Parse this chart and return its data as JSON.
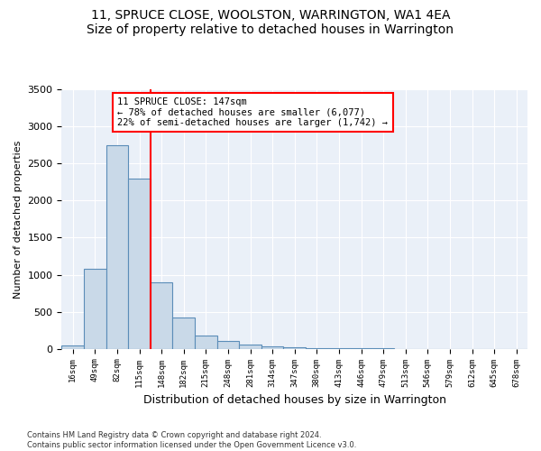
{
  "title": "11, SPRUCE CLOSE, WOOLSTON, WARRINGTON, WA1 4EA",
  "subtitle": "Size of property relative to detached houses in Warrington",
  "xlabel": "Distribution of detached houses by size in Warrington",
  "ylabel": "Number of detached properties",
  "categories": [
    "16sqm",
    "49sqm",
    "82sqm",
    "115sqm",
    "148sqm",
    "182sqm",
    "215sqm",
    "248sqm",
    "281sqm",
    "314sqm",
    "347sqm",
    "380sqm",
    "413sqm",
    "446sqm",
    "479sqm",
    "513sqm",
    "546sqm",
    "579sqm",
    "612sqm",
    "645sqm",
    "678sqm"
  ],
  "values": [
    50,
    1075,
    2750,
    2300,
    900,
    425,
    175,
    100,
    55,
    30,
    15,
    10,
    8,
    5,
    3,
    2,
    2,
    1,
    1,
    1,
    1
  ],
  "bar_color": "#c9d9e8",
  "bar_edge_color": "#5b8db8",
  "property_line_index": 4,
  "property_line_label": "11 SPRUCE CLOSE: 147sqm",
  "annotation_line1": "← 78% of detached houses are smaller (6,077)",
  "annotation_line2": "22% of semi-detached houses are larger (1,742) →",
  "annotation_box_color": "white",
  "annotation_box_edge": "red",
  "red_line_color": "red",
  "ylim": [
    0,
    3500
  ],
  "yticks": [
    0,
    500,
    1000,
    1500,
    2000,
    2500,
    3000,
    3500
  ],
  "bg_color": "#eaf0f8",
  "grid_color": "white",
  "footer1": "Contains HM Land Registry data © Crown copyright and database right 2024.",
  "footer2": "Contains public sector information licensed under the Open Government Licence v3.0."
}
